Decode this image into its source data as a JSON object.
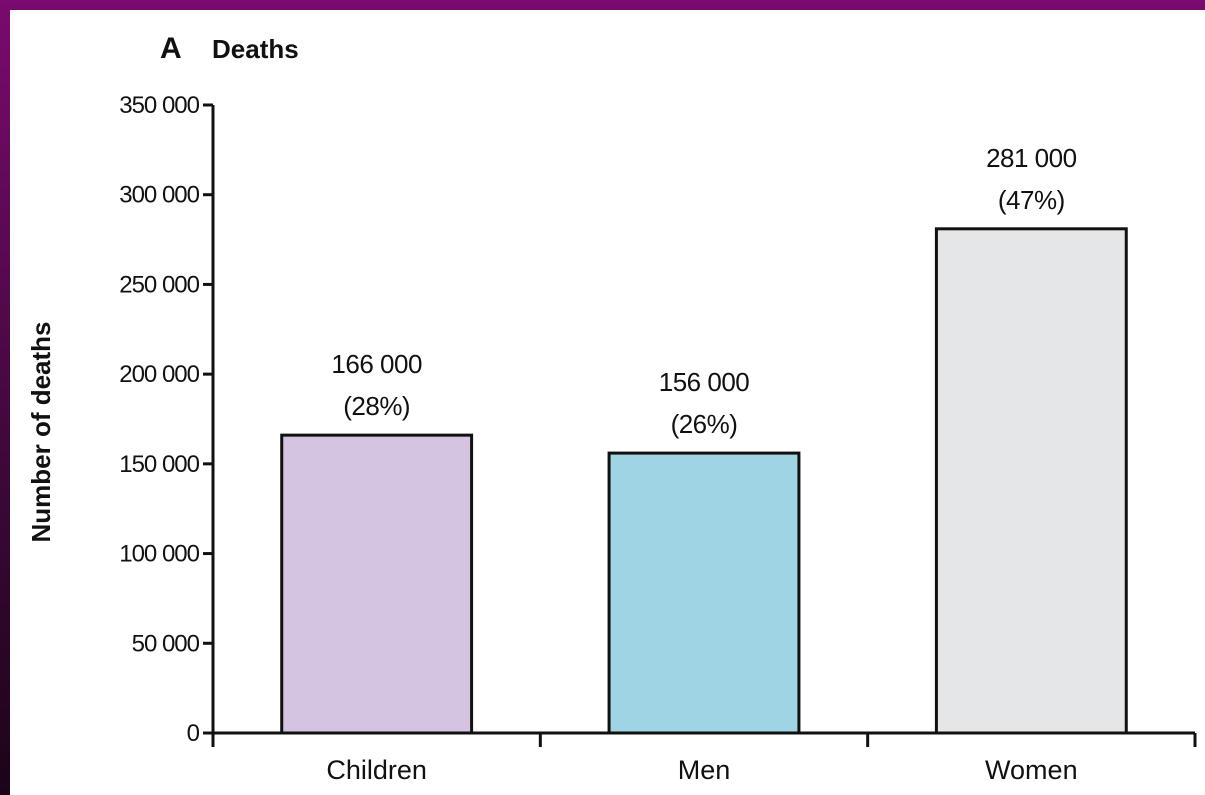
{
  "chart_data": {
    "type": "bar",
    "panel_letter": "A",
    "title": "Deaths",
    "ylabel": "Number of deaths",
    "xlabel": "",
    "ylim": [
      0,
      350000
    ],
    "yticks": [
      0,
      50000,
      100000,
      150000,
      200000,
      250000,
      300000,
      350000
    ],
    "ytick_labels": [
      "0",
      "50 000",
      "100 000",
      "150 000",
      "200 000",
      "250 000",
      "300 000",
      "350 000"
    ],
    "categories": [
      "Children",
      "Men",
      "Women"
    ],
    "values": [
      166000,
      156000,
      281000
    ],
    "value_labels": [
      "166 000",
      "156 000",
      "281 000"
    ],
    "percent_labels": [
      "(28%)",
      "(26%)",
      "(47%)"
    ],
    "colors": [
      "#d4c4e1",
      "#9fd4e4",
      "#e5e6e8"
    ],
    "grid": false,
    "legend": "none"
  }
}
